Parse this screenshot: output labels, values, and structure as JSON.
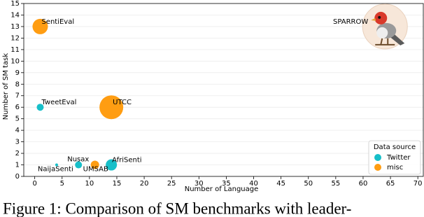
{
  "chart_data": {
    "type": "scatter",
    "x_label": "Number of Language",
    "y_label": "Number of SM task",
    "xlim": [
      -2,
      71
    ],
    "ylim": [
      0,
      15
    ],
    "xticks": [
      0,
      5,
      10,
      15,
      20,
      25,
      30,
      35,
      40,
      45,
      50,
      55,
      60,
      65,
      70
    ],
    "yticks": [
      0,
      1,
      2,
      3,
      4,
      5,
      6,
      7,
      8,
      9,
      10,
      11,
      12,
      13,
      14,
      15
    ],
    "grid": "y",
    "legend": "lower right",
    "legend_title": "Data source",
    "series": [
      {
        "name": "Twitter",
        "color": "#17bfc9",
        "labels": [
          "TweetEval",
          "Nusax",
          "NaijaSenti",
          "AfriSenti"
        ],
        "x": [
          1,
          8,
          4,
          14
        ],
        "values": [
          6,
          1,
          1,
          1
        ],
        "sizes": [
          5,
          5,
          2,
          8
        ]
      },
      {
        "name": "misc",
        "color": "#ff9d12",
        "labels": [
          "SentiEval",
          "UTCC",
          "UMSAB"
        ],
        "x": [
          1,
          14,
          11
        ],
        "values": [
          13,
          6,
          1
        ],
        "sizes": [
          11,
          17,
          6
        ]
      }
    ],
    "highlight": {
      "label": "SPARROW",
      "x": 64,
      "value": 13,
      "size": 32
    },
    "caption": "Figure 1: Comparison of SM benchmarks with leader-"
  }
}
